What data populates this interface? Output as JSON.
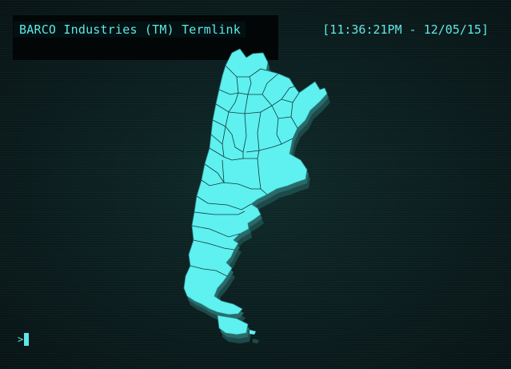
{
  "terminal": {
    "title": "BARCO Industries (TM) Termlink",
    "timestamp": "[11:36:21PM - 12/05/15]",
    "prompt_symbol": ">",
    "cursor": "block-cursor"
  },
  "map": {
    "subject": "argentina-provinces-map",
    "fill_color": "#5ff0f0",
    "shadow_color": "#1d4a4a",
    "border_color": "#123a3a"
  },
  "colors": {
    "text": "#5ee8e6",
    "background": "#0b1d1e",
    "header_bg": "#020606"
  }
}
